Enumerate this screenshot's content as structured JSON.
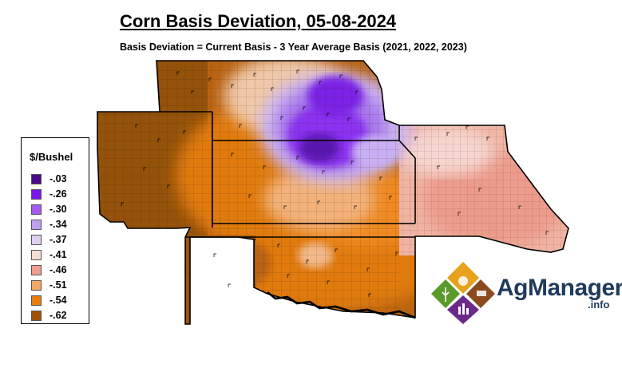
{
  "title": "Corn Basis Deviation, 05-08-2024",
  "subtitle": "Basis Deviation = Current Basis - 3 Year Average Basis (2021, 2022, 2023)",
  "legend": {
    "title": "$/Bushel",
    "items": [
      {
        "label": "-.03",
        "color": "#4a0a8c"
      },
      {
        "label": "-.26",
        "color": "#7b16ee"
      },
      {
        "label": "-.30",
        "color": "#a45af0"
      },
      {
        "label": "-.34",
        "color": "#bfa0f0"
      },
      {
        "label": "-.37",
        "color": "#ddd0f4"
      },
      {
        "label": "-.41",
        "color": "#f6dcd2"
      },
      {
        "label": "-.46",
        "color": "#ef9e8c"
      },
      {
        "label": "-.51",
        "color": "#f3a866"
      },
      {
        "label": "-.54",
        "color": "#e87e10"
      },
      {
        "label": "-.62",
        "color": "#9e5008"
      }
    ]
  },
  "logo": {
    "name": "AgManager",
    "suffix": ".info"
  }
}
